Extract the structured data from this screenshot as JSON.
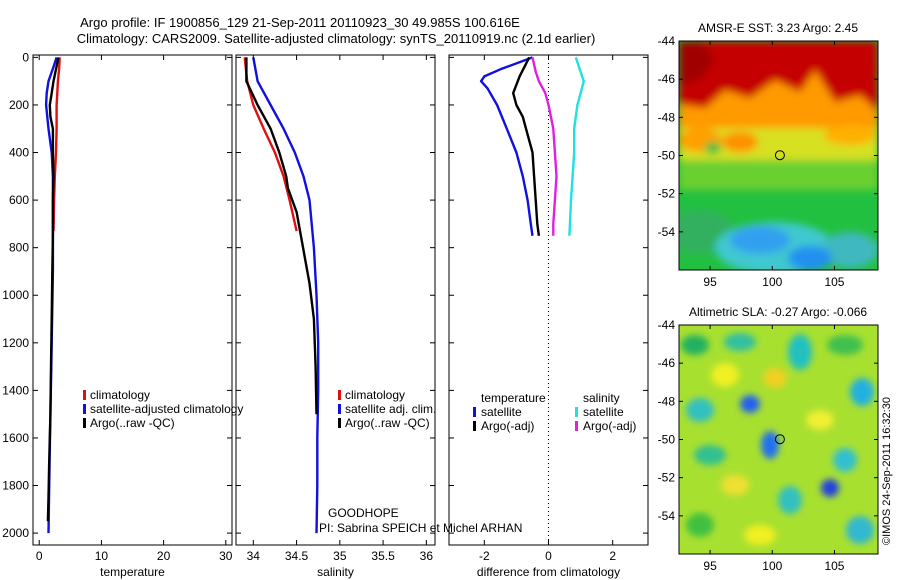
{
  "header": {
    "line1": "Argo profile: IF 1900856_129 21-Sep-2011 20110923_30 49.985S 100.616E",
    "line2": "Climatology: CARS2009. Satellite-adjusted climatology: synTS_20110919.nc (2.1d earlier)"
  },
  "credit": {
    "project": "GOODHOPE",
    "pi": "PI: Sabrina SPEICH et Michel ARHAN",
    "stamp": "©IMOS 24-Sep-2011 16:32:30"
  },
  "colors": {
    "climatology": "#e01010",
    "satellite": "#1010e0",
    "argo": "#000000",
    "sat_salinity": "#20e0e0",
    "argo_salinity": "#e020e0"
  },
  "chart_data": [
    {
      "id": "temperature",
      "type": "line",
      "xlabel": "temperature",
      "xlim": [
        -1,
        31
      ],
      "ylim": [
        2050,
        -10
      ],
      "xticks": [
        0,
        10,
        20,
        30
      ],
      "yticks": [
        0,
        200,
        400,
        600,
        800,
        1000,
        1200,
        1400,
        1600,
        1800,
        2000
      ],
      "legend": [
        "climatology",
        "satellite-adjusted climatology",
        "Argo(..raw -QC)"
      ],
      "series": [
        {
          "name": "climatology",
          "color": "#e01010",
          "points": [
            [
              3.3,
              0
            ],
            [
              3.2,
              50
            ],
            [
              3.0,
              100
            ],
            [
              2.9,
              150
            ],
            [
              2.8,
              200
            ],
            [
              2.8,
              300
            ],
            [
              2.7,
              400
            ],
            [
              2.5,
              500
            ],
            [
              2.4,
              600
            ],
            [
              2.3,
              730
            ]
          ]
        },
        {
          "name": "satellite-adjusted climatology",
          "color": "#1010e0",
          "points": [
            [
              2.8,
              0
            ],
            [
              2.3,
              40
            ],
            [
              1.5,
              100
            ],
            [
              1.2,
              150
            ],
            [
              1.1,
              200
            ],
            [
              1.5,
              300
            ],
            [
              2.0,
              400
            ],
            [
              2.2,
              500
            ],
            [
              2.2,
              700
            ],
            [
              2.2,
              900
            ],
            [
              2.0,
              1200
            ],
            [
              1.8,
              1500
            ],
            [
              1.6,
              1800
            ],
            [
              1.5,
              2000
            ]
          ]
        },
        {
          "name": "Argo(..raw -QC)",
          "color": "#000000",
          "points": [
            [
              3.1,
              0
            ],
            [
              2.7,
              50
            ],
            [
              2.3,
              100
            ],
            [
              2.0,
              150
            ],
            [
              1.7,
              200
            ],
            [
              1.8,
              250
            ],
            [
              2.2,
              300
            ],
            [
              2.2,
              400
            ],
            [
              2.3,
              500
            ],
            [
              2.2,
              600
            ],
            [
              2.2,
              750
            ],
            [
              2.1,
              900
            ],
            [
              2.0,
              1100
            ],
            [
              1.9,
              1300
            ],
            [
              1.8,
              1500
            ],
            [
              1.6,
              1700
            ],
            [
              1.5,
              1850
            ],
            [
              1.4,
              1950
            ]
          ]
        }
      ]
    },
    {
      "id": "salinity",
      "type": "line",
      "xlabel": "salinity",
      "xlim": [
        33.8,
        36.1
      ],
      "ylim": [
        2050,
        -10
      ],
      "xticks": [
        34,
        34.5,
        35,
        35.5,
        36
      ],
      "yticks": [
        0,
        200,
        400,
        600,
        800,
        1000,
        1200,
        1400,
        1600,
        1800,
        2000
      ],
      "legend": [
        "climatology",
        "satellite adj. clim.",
        "Argo(..raw -QC)"
      ],
      "series": [
        {
          "name": "climatology",
          "color": "#e01010",
          "points": [
            [
              33.9,
              0
            ],
            [
              33.93,
              100
            ],
            [
              34.0,
              200
            ],
            [
              34.12,
              300
            ],
            [
              34.25,
              400
            ],
            [
              34.35,
              500
            ],
            [
              34.42,
              600
            ],
            [
              34.5,
              730
            ]
          ]
        },
        {
          "name": "satellite adj. clim.",
          "color": "#1010e0",
          "points": [
            [
              34.0,
              0
            ],
            [
              34.05,
              100
            ],
            [
              34.2,
              200
            ],
            [
              34.35,
              300
            ],
            [
              34.48,
              400
            ],
            [
              34.58,
              500
            ],
            [
              34.65,
              600
            ],
            [
              34.7,
              800
            ],
            [
              34.73,
              1000
            ],
            [
              34.75,
              1200
            ],
            [
              34.75,
              1400
            ],
            [
              34.74,
              1600
            ],
            [
              34.74,
              1800
            ],
            [
              34.73,
              2000
            ]
          ]
        },
        {
          "name": "Argo(..raw -QC)",
          "color": "#000000",
          "points": [
            [
              33.92,
              0
            ],
            [
              33.92,
              100
            ],
            [
              34.05,
              200
            ],
            [
              34.2,
              300
            ],
            [
              34.3,
              400
            ],
            [
              34.38,
              500
            ],
            [
              34.4,
              550
            ],
            [
              34.5,
              650
            ],
            [
              34.55,
              750
            ],
            [
              34.6,
              850
            ],
            [
              34.65,
              950
            ],
            [
              34.7,
              1100
            ],
            [
              34.72,
              1300
            ],
            [
              34.73,
              1500
            ]
          ]
        }
      ]
    },
    {
      "id": "difference",
      "type": "line",
      "xlabel": "difference from climatology",
      "xlim": [
        -3.1,
        3.1
      ],
      "ylim": [
        2050,
        -10
      ],
      "xticks": [
        -2,
        0,
        2
      ],
      "yticks": [
        0,
        200,
        400,
        600,
        800,
        1000,
        1200,
        1400,
        1600,
        1800,
        2000
      ],
      "legend_temperature": {
        "title": "temperature",
        "items": [
          "satellite",
          "Argo(-adj)"
        ]
      },
      "legend_salinity": {
        "title": "salinity",
        "items": [
          "satellite",
          "Argo(-adj)"
        ]
      },
      "series": [
        {
          "name": "temperature satellite",
          "color": "#1010e0",
          "points": [
            [
              -0.5,
              0
            ],
            [
              -1.5,
              50
            ],
            [
              -2.0,
              80
            ],
            [
              -2.1,
              100
            ],
            [
              -1.9,
              130
            ],
            [
              -1.6,
              200
            ],
            [
              -1.3,
              300
            ],
            [
              -1.0,
              400
            ],
            [
              -0.8,
              500
            ],
            [
              -0.65,
              600
            ],
            [
              -0.55,
              700
            ],
            [
              -0.5,
              750
            ]
          ]
        },
        {
          "name": "temperature Argo(-adj)",
          "color": "#000000",
          "points": [
            [
              -0.6,
              0
            ],
            [
              -0.9,
              80
            ],
            [
              -1.1,
              150
            ],
            [
              -1.0,
              200
            ],
            [
              -0.8,
              250
            ],
            [
              -0.7,
              300
            ],
            [
              -0.5,
              400
            ],
            [
              -0.45,
              500
            ],
            [
              -0.4,
              600
            ],
            [
              -0.35,
              700
            ],
            [
              -0.3,
              750
            ]
          ]
        },
        {
          "name": "salinity satellite",
          "color": "#20e0e0",
          "points": [
            [
              0.85,
              0
            ],
            [
              1.0,
              60
            ],
            [
              1.1,
              100
            ],
            [
              1.0,
              150
            ],
            [
              0.9,
              200
            ],
            [
              0.8,
              300
            ],
            [
              0.8,
              400
            ],
            [
              0.75,
              500
            ],
            [
              0.7,
              600
            ],
            [
              0.65,
              750
            ]
          ]
        },
        {
          "name": "salinity Argo(-adj)",
          "color": "#e020e0",
          "points": [
            [
              -0.5,
              0
            ],
            [
              -0.4,
              60
            ],
            [
              -0.3,
              100
            ],
            [
              -0.1,
              150
            ],
            [
              0.0,
              200
            ],
            [
              0.15,
              300
            ],
            [
              0.2,
              400
            ],
            [
              0.25,
              500
            ],
            [
              0.2,
              600
            ],
            [
              0.15,
              700
            ],
            [
              0.15,
              750
            ]
          ]
        }
      ]
    },
    {
      "id": "sst_map",
      "type": "heatmap",
      "title": "AMSR-E SST: 3.23 Argo: 2.45",
      "xlim": [
        92.5,
        108.5
      ],
      "ylim": [
        -56,
        -44
      ],
      "xticks": [
        95,
        100,
        105
      ],
      "yticks": [
        -44,
        -46,
        -48,
        -50,
        -52,
        -54
      ],
      "marker": {
        "lon": 100.616,
        "lat": -49.985
      }
    },
    {
      "id": "sla_map",
      "type": "heatmap",
      "title": "Altimetric SLA: -0.27 Argo: -0.066",
      "xlim": [
        92.5,
        108.5
      ],
      "ylim": [
        -56,
        -44
      ],
      "xticks": [
        95,
        100,
        105
      ],
      "yticks": [
        -44,
        -46,
        -48,
        -50,
        -52,
        -54
      ],
      "marker": {
        "lon": 100.616,
        "lat": -49.985
      }
    }
  ]
}
